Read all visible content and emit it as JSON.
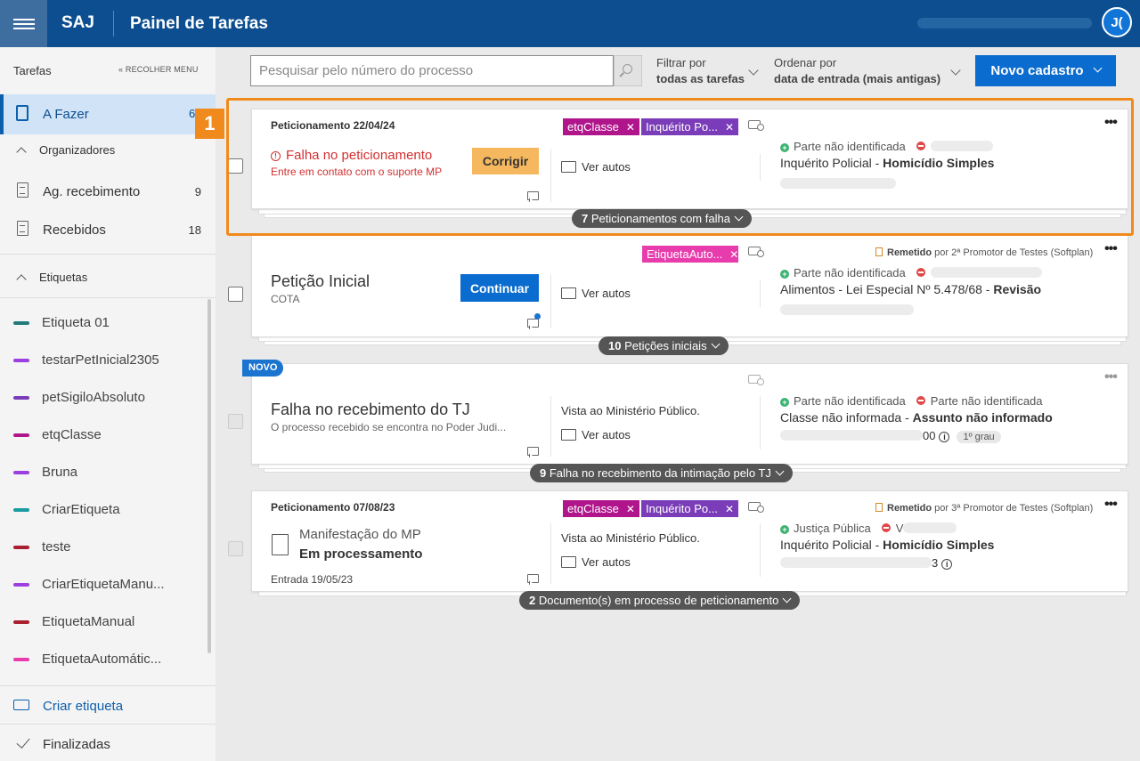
{
  "topbar": {
    "brand": "SAJ",
    "title": "Painel de Tarefas",
    "avatar_initials": "J("
  },
  "sidebar": {
    "heading": "Tarefas",
    "collapse": "« RECOLHER MENU",
    "afazer": {
      "label": "A Fazer",
      "count": "6"
    },
    "organizadores": "Organizadores",
    "items": [
      {
        "label": "Ag. recebimento",
        "count": "9"
      },
      {
        "label": "Recebidos",
        "count": "18"
      }
    ],
    "etiquetas_heading": "Etiquetas",
    "etiquetas": [
      {
        "label": "Etiqueta 01",
        "color": "#1f7a7a"
      },
      {
        "label": "testarPetInicial2305",
        "color": "#9c3ee0"
      },
      {
        "label": "petSigiloAbsoluto",
        "color": "#7a3cb8"
      },
      {
        "label": "etqClasse",
        "color": "#b0158c"
      },
      {
        "label": "Bruna",
        "color": "#9c3ee0"
      },
      {
        "label": "CriarEtiqueta",
        "color": "#1a9ba0"
      },
      {
        "label": "teste",
        "color": "#a82030"
      },
      {
        "label": "CriarEtiquetaManu...",
        "color": "#9c3ee0"
      },
      {
        "label": "EtiquetaManual",
        "color": "#a82030"
      },
      {
        "label": "EtiquetaAutomátic...",
        "color": "#e83cad"
      }
    ],
    "criar_etiqueta": "Criar etiqueta",
    "finalizadas": "Finalizadas"
  },
  "toolbar": {
    "search_placeholder": "Pesquisar pelo número do processo",
    "filter_label": "Filtrar por",
    "filter_value": "todas as tarefas",
    "order_label": "Ordenar por",
    "order_value": "data de entrada (mais antigas)",
    "new_button": "Novo cadastro"
  },
  "highlight_badge": "1",
  "cards": [
    {
      "header": "Peticionamento 22/04/24",
      "error_title": "Falha no peticionamento",
      "error_sub": "Entre em contato com o suporte MP",
      "action": "Corrigir",
      "tags": [
        "etqClasse",
        "Inquérito Po..."
      ],
      "ver_autos": "Ver autos",
      "party_a": "Parte não identificada",
      "classline_a": "Inquérito Policial - ",
      "classline_b": "Homicídio Simples",
      "pill_count": "7",
      "pill_text": " Peticionamentos com falha"
    },
    {
      "title": "Petição Inicial",
      "subtitle": "COTA",
      "action": "Continuar",
      "tags": [
        "EtiquetaAuto..."
      ],
      "remetido_b": "Remetido",
      "remetido_t": " por 2ª Promotor de Testes (Softplan)",
      "ver_autos": "Ver autos",
      "party_a": "Parte não identificada",
      "classline_a": "Alimentos - Lei Especial Nº 5.478/68 - ",
      "classline_b": "Revisão",
      "pill_count": "10",
      "pill_text": " Petições iniciais"
    },
    {
      "badge": "NOVO",
      "title": "Falha no recebimento do TJ",
      "subtitle": "O processo recebido se encontra no Poder Judi...",
      "middle_text": "Vista ao Ministério Público.",
      "ver_autos": "Ver autos",
      "party_a": "Parte não identificada",
      "party_b": "Parte não identificada",
      "classline_a": "Classe não informada - ",
      "classline_b": "Assunto não informado",
      "proc_suffix": "00",
      "grau": "1º grau",
      "pill_count": "9",
      "pill_text": " Falha no recebimento da intimação pelo TJ"
    },
    {
      "header": "Peticionamento 07/08/23",
      "doc_title": "Manifestação do MP",
      "doc_status": "Em processamento",
      "entrada": "Entrada 19/05/23",
      "tags": [
        "etqClasse",
        "Inquérito Po..."
      ],
      "remetido_b": "Remetido",
      "remetido_t": " por 3ª Promotor de Testes (Softplan)",
      "middle_text": "Vista ao Ministério Público.",
      "ver_autos": "Ver autos",
      "party_a": "Justiça Pública",
      "party_b": "V",
      "classline_a": "Inquérito Policial - ",
      "classline_b": "Homicídio Simples",
      "proc_suffix": "3",
      "pill_count": "2",
      "pill_text": " Documento(s) em processo de peticionamento"
    }
  ],
  "colors": {
    "topbar": "#0c4e8f",
    "accent": "#0a6cce",
    "highlight": "#f08a1c",
    "tag_magenta": "#b0158c",
    "tag_purple": "#7a3cb8",
    "tag_pink": "#e83cad"
  }
}
